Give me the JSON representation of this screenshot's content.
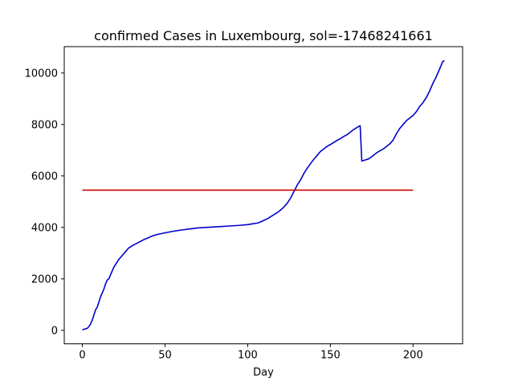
{
  "chart_data": {
    "type": "line",
    "title": "confirmed Cases in Luxembourg, sol=-17468241661",
    "xlabel": "Day",
    "ylabel": "",
    "xlim": [
      -10.95,
      229.95
    ],
    "ylim": [
      -525,
      11025
    ],
    "xticks": [
      0,
      50,
      100,
      150,
      200
    ],
    "yticks": [
      0,
      2000,
      4000,
      6000,
      8000,
      10000
    ],
    "grid": false,
    "legend": "none",
    "series": [
      {
        "color": "#0000cc",
        "x": [
          0,
          2,
          3,
          4,
          5,
          6,
          7,
          8,
          9,
          10,
          11,
          12,
          13,
          14,
          15,
          16,
          17,
          18,
          19,
          20,
          22,
          24,
          26,
          28,
          30,
          32,
          35,
          37,
          40,
          42,
          45,
          50,
          55,
          60,
          65,
          70,
          75,
          80,
          85,
          90,
          95,
          100,
          103,
          106,
          108,
          110,
          112,
          114,
          116,
          118,
          120,
          122,
          124,
          126,
          128,
          130,
          132,
          134,
          136,
          138,
          140,
          142,
          144,
          146,
          148,
          150,
          152,
          154,
          156,
          158,
          160,
          162,
          164,
          166,
          167,
          168,
          169,
          170,
          171,
          172,
          173,
          174,
          176,
          178,
          180,
          182,
          184,
          186,
          188,
          190,
          192,
          194,
          196,
          198,
          200,
          202,
          204,
          206,
          208,
          210,
          212,
          214,
          216,
          218,
          219
        ],
        "y": [
          20,
          60,
          80,
          150,
          250,
          400,
          600,
          800,
          900,
          1100,
          1300,
          1450,
          1600,
          1800,
          1950,
          2000,
          2150,
          2300,
          2450,
          2550,
          2750,
          2900,
          3050,
          3200,
          3280,
          3350,
          3450,
          3520,
          3600,
          3660,
          3720,
          3790,
          3850,
          3900,
          3940,
          3980,
          4000,
          4020,
          4040,
          4060,
          4080,
          4110,
          4140,
          4170,
          4220,
          4280,
          4340,
          4420,
          4500,
          4580,
          4680,
          4800,
          4950,
          5150,
          5400,
          5650,
          5850,
          6100,
          6300,
          6480,
          6650,
          6800,
          6950,
          7050,
          7150,
          7220,
          7300,
          7380,
          7450,
          7530,
          7600,
          7700,
          7800,
          7880,
          7920,
          7950,
          6580,
          6600,
          6620,
          6640,
          6660,
          6700,
          6800,
          6900,
          6980,
          7050,
          7150,
          7250,
          7400,
          7650,
          7850,
          8000,
          8150,
          8250,
          8350,
          8500,
          8700,
          8850,
          9050,
          9300,
          9600,
          9850,
          10150,
          10450,
          10480
        ]
      },
      {
        "color": "#cc0000",
        "x": [
          0,
          200
        ],
        "y": [
          5450,
          5450
        ]
      }
    ]
  }
}
